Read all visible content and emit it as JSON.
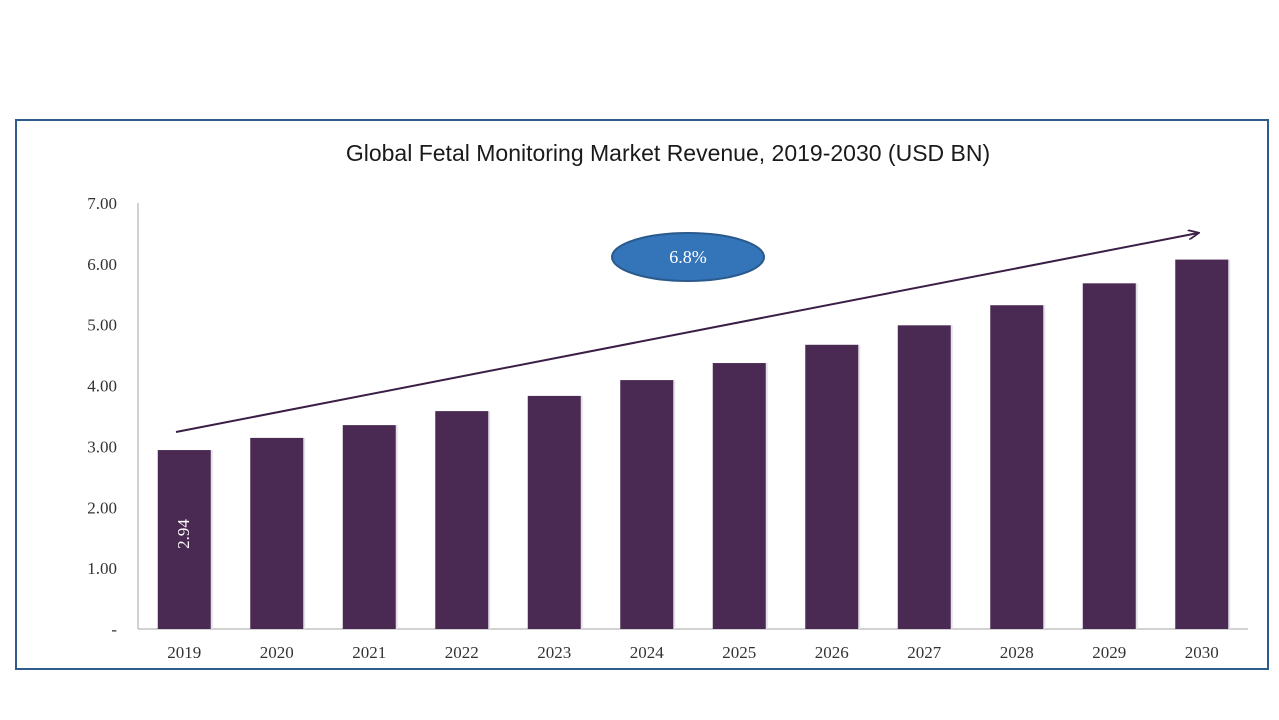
{
  "colors": {
    "bar": "#4a2a52",
    "frame_border": "#2e5c8a",
    "cagr_fill": "#3474b9",
    "cagr_stroke": "#2a5a8c",
    "trend_arrow": "#3a1e45"
  },
  "chart_data": {
    "type": "bar",
    "title": "Global Fetal Monitoring Market Revenue, 2019-2030 (USD BN)",
    "xlabel": "",
    "ylabel": "",
    "categories": [
      "2019",
      "2020",
      "2021",
      "2022",
      "2023",
      "2024",
      "2025",
      "2026",
      "2027",
      "2028",
      "2029",
      "2030"
    ],
    "values": [
      2.94,
      3.14,
      3.35,
      3.58,
      3.83,
      4.09,
      4.37,
      4.67,
      4.99,
      5.32,
      5.68,
      6.07
    ],
    "ylim": [
      0,
      7
    ],
    "yticks": [
      0,
      1,
      2,
      3,
      4,
      5,
      6,
      7
    ],
    "ytick_labels": [
      "-",
      "1.00",
      "2.00",
      "3.00",
      "4.00",
      "5.00",
      "6.00",
      "7.00"
    ],
    "data_labels": [
      {
        "category": "2019",
        "text": "2.94"
      }
    ],
    "annotations": [
      {
        "type": "cagr-ellipse",
        "text": "6.8%"
      },
      {
        "type": "trend-arrow",
        "from": "2019",
        "to": "2030"
      }
    ],
    "grid": false,
    "legend": "none"
  }
}
